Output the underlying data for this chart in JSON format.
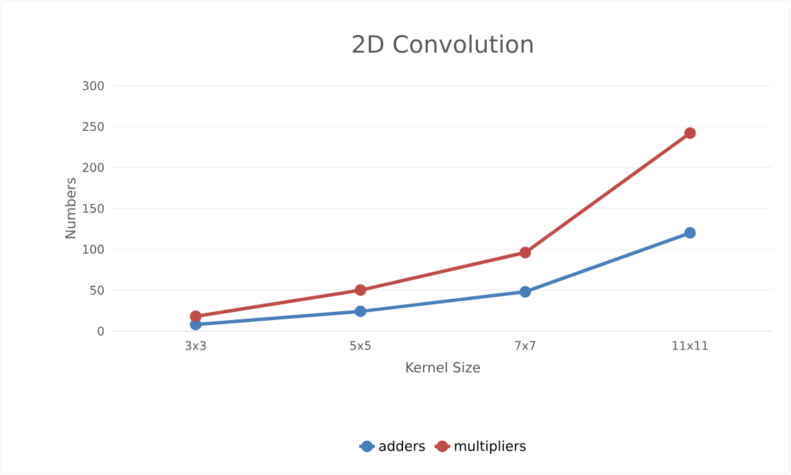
{
  "chart_data": {
    "type": "line",
    "title": "2D Convolution",
    "xlabel": "Kernel Size",
    "ylabel": "Numbers",
    "categories": [
      "3x3",
      "5x5",
      "7x7",
      "11x11"
    ],
    "series": [
      {
        "name": "adders",
        "color": "#4a7ebb",
        "values": [
          8,
          24,
          48,
          120
        ]
      },
      {
        "name": "multipliers",
        "color": "#be4b48",
        "values": [
          18,
          50,
          96,
          242
        ]
      }
    ],
    "ylim": [
      0,
      300
    ],
    "yticks": [
      0,
      50,
      100,
      150,
      200,
      250,
      300
    ],
    "grid": "y",
    "legend": "bottom",
    "marker": "circle",
    "line_style": "solid"
  }
}
